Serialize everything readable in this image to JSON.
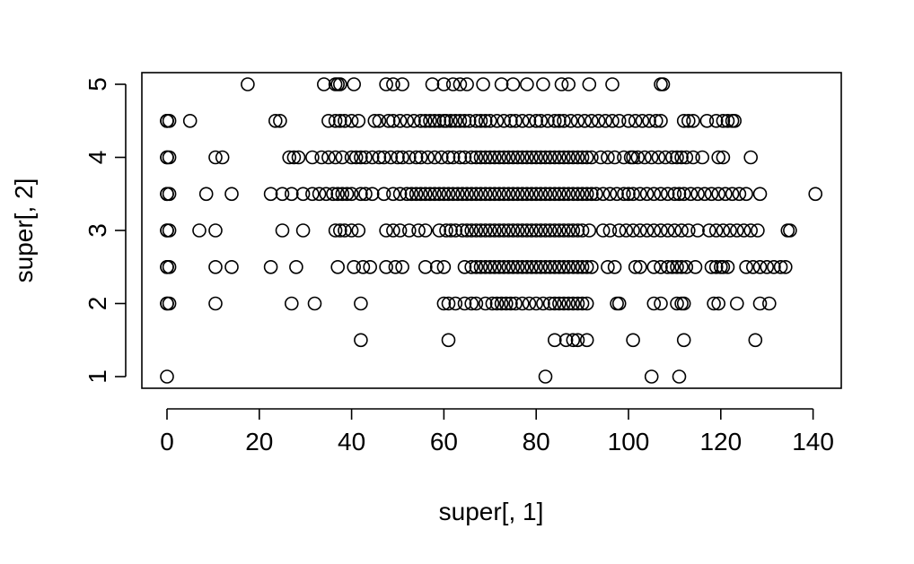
{
  "chart_data": {
    "type": "scatter",
    "title": "",
    "xlabel": "super[, 1]",
    "ylabel": "super[, 2]",
    "xlim": [
      -6,
      145
    ],
    "ylim": [
      0.8,
      5.2
    ],
    "xticks": [
      "0",
      "20",
      "40",
      "60",
      "80",
      "100",
      "120",
      "140"
    ],
    "yticks": [
      "1",
      "2",
      "3",
      "4",
      "5"
    ],
    "grid": false,
    "legend": "none",
    "rows": [
      {
        "y": 5,
        "x": [
          17.5,
          34,
          36.5,
          37,
          37.5,
          40.5,
          47.5,
          49,
          51,
          57.5,
          60,
          62,
          63.5,
          65,
          68.5,
          72.5,
          75,
          78,
          81.5,
          85.5,
          87,
          91.5,
          96.5,
          107,
          107.5
        ]
      },
      {
        "y": 4.5,
        "x": [
          0,
          0,
          0,
          0.5,
          5,
          23.5,
          24.5,
          35,
          36.5,
          37.5,
          38.5,
          40,
          41.5,
          45,
          46,
          48,
          49,
          50.5,
          52,
          53.5,
          55,
          56,
          57,
          58,
          59,
          60,
          60.5,
          61.5,
          62.5,
          63.5,
          64.5,
          65.5,
          67,
          68,
          69,
          70,
          71.5,
          73,
          74.5,
          75.5,
          77,
          78.5,
          80,
          81,
          82.5,
          84,
          85,
          86,
          87.5,
          89,
          90.5,
          92,
          93.5,
          95,
          96.5,
          98,
          100,
          101.5,
          103,
          104.5,
          106,
          107,
          112,
          113,
          114,
          117,
          119,
          120.5,
          121.5,
          122.5,
          123
        ]
      },
      {
        "y": 4,
        "x": [
          0,
          0,
          0.5,
          10.5,
          12,
          26.5,
          27.5,
          28.5,
          31.5,
          33.5,
          35,
          36.5,
          38,
          40,
          41,
          42,
          43,
          44.5,
          46,
          47,
          48.5,
          50,
          51,
          52.5,
          54,
          55,
          56.5,
          58,
          59.5,
          61,
          62,
          63.5,
          64.5,
          66,
          67,
          68,
          69,
          70,
          71,
          72,
          73,
          74,
          75,
          76,
          77,
          78,
          79,
          80,
          81,
          82,
          83,
          84,
          85,
          86,
          87,
          88,
          89,
          90,
          91,
          92,
          94,
          95.5,
          97,
          99,
          100.5,
          101,
          102,
          103.5,
          105,
          106.5,
          108,
          109.5,
          110.5,
          111.5,
          112.5,
          114,
          116,
          119.5,
          120.5,
          126.5
        ]
      },
      {
        "y": 3.5,
        "x": [
          0,
          0,
          0.5,
          8.5,
          14,
          22.5,
          25,
          27,
          29.5,
          31.5,
          33,
          34.5,
          36,
          37,
          38,
          39,
          40,
          42,
          43,
          44.5,
          47,
          49,
          50.5,
          52,
          53,
          54,
          55,
          56,
          57,
          58,
          59,
          60,
          61,
          62,
          63,
          64,
          65,
          66,
          67,
          68,
          69,
          70,
          71,
          72,
          73,
          74,
          75,
          76,
          77,
          78,
          79,
          80,
          81,
          82,
          83,
          84,
          85,
          86,
          87,
          88,
          89,
          90,
          91,
          92,
          93,
          94.5,
          96,
          97.5,
          99,
          100,
          101,
          102.5,
          104,
          105.5,
          107,
          108.5,
          110,
          111,
          112,
          113.5,
          115,
          116.5,
          118,
          119.5,
          121,
          122.5,
          124,
          125.5,
          128.5,
          140.5
        ]
      },
      {
        "y": 3,
        "x": [
          0,
          0,
          0.5,
          7,
          10.5,
          25,
          29.5,
          36.5,
          37.5,
          38.5,
          40,
          41.5,
          47.5,
          49,
          50.5,
          52.5,
          54.5,
          56,
          59,
          60.5,
          61.5,
          62.5,
          64,
          65,
          66,
          67,
          68,
          69,
          70,
          71,
          72,
          73,
          74,
          75,
          76,
          77,
          78,
          79,
          80,
          81,
          82,
          83,
          84,
          85,
          86,
          87,
          88,
          89,
          90,
          91.5,
          94.5,
          96,
          98,
          99.5,
          101,
          102.5,
          104,
          105.5,
          107,
          108.5,
          110,
          111.5,
          113,
          115,
          117.5,
          119,
          120.5,
          122,
          123.5,
          125,
          126.5,
          128,
          134.5,
          135
        ]
      },
      {
        "y": 2.5,
        "x": [
          0,
          0,
          0.5,
          10.5,
          14,
          22.5,
          28,
          37,
          40.5,
          42.5,
          44,
          47.5,
          49.5,
          51,
          56,
          58.5,
          60,
          64.5,
          66,
          67,
          68,
          69,
          70,
          71,
          72,
          73,
          74,
          75,
          76,
          77,
          78,
          79,
          80,
          81,
          82,
          83,
          84,
          85,
          86,
          87,
          88,
          89,
          90,
          91,
          92,
          95.5,
          97,
          101.5,
          102.5,
          105.5,
          107,
          108.5,
          109.5,
          110.5,
          111.5,
          112.5,
          114.5,
          118,
          119,
          120,
          120.5,
          121.5,
          125.5,
          127,
          128.5,
          130,
          131.5,
          133,
          134
        ]
      },
      {
        "y": 2,
        "x": [
          0,
          0,
          0.5,
          10.5,
          27,
          32,
          42,
          60,
          61,
          62.5,
          64.5,
          66,
          67,
          69,
          70.5,
          71.5,
          72.5,
          73.5,
          74.5,
          75.5,
          77,
          78.5,
          80,
          81.5,
          83,
          84,
          85,
          86,
          87,
          88,
          89,
          90,
          91,
          97.5,
          98,
          105.5,
          107,
          110.5,
          111.5,
          112,
          118.5,
          119.5,
          123.5,
          128.5,
          130.5
        ]
      },
      {
        "y": 1.5,
        "x": [
          42,
          61,
          84,
          86.5,
          88,
          89,
          91,
          101,
          112,
          127.5
        ]
      },
      {
        "y": 1,
        "x": [
          0,
          82,
          105,
          111
        ]
      }
    ]
  }
}
